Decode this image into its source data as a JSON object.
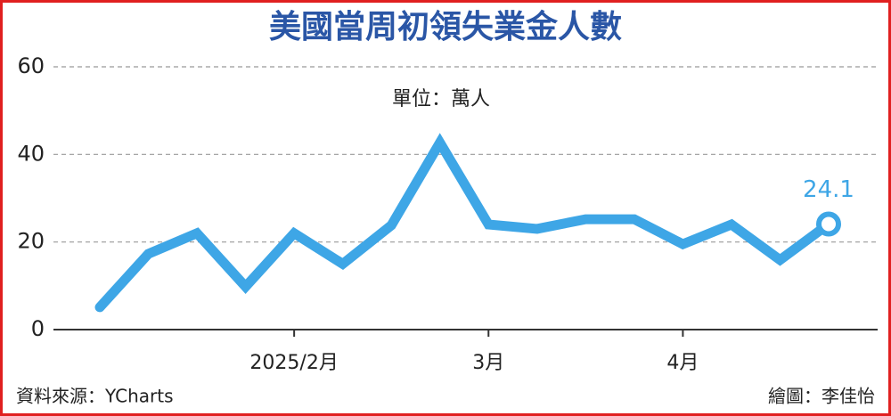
{
  "chart_data": {
    "type": "line",
    "title": "美國當周初領失業金人數",
    "annotation": "單位：萬人",
    "source": "資料來源：YCharts",
    "credit": "繪圖：李佳怡",
    "categories": [
      null,
      null,
      null,
      null,
      "2025/2月",
      null,
      null,
      null,
      "3月",
      null,
      null,
      null,
      "4月",
      null,
      null,
      null
    ],
    "series": [
      {
        "name": "初領失業金人數",
        "color": "#3ea6e6",
        "values": [
          5.1,
          17.3,
          22,
          9.8,
          22,
          15,
          23.8,
          42.7,
          24,
          23,
          25.2,
          25.2,
          19.5,
          24,
          15.9,
          24.1
        ]
      }
    ],
    "ylim": [
      0,
      60
    ],
    "yticks": [
      0,
      20,
      40,
      60
    ],
    "grid": true
  }
}
